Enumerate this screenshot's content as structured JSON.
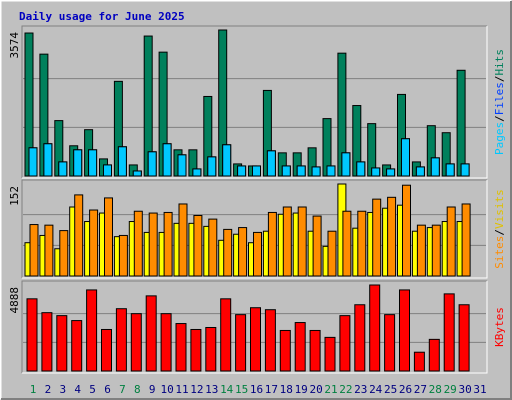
{
  "title": "Daily usage for June 2025",
  "separator": "/",
  "chart_data": [
    {
      "type": "bar",
      "ylim": [
        0,
        3574
      ],
      "yticks": [
        3574
      ],
      "grid_divisions": 3,
      "series": [
        {
          "name": "Hits",
          "color": "#00805c",
          "values": [
            3500,
            2983,
            1356,
            740,
            1134,
            419,
            2317,
            271,
            3426,
            3032,
            641,
            641,
            1947,
            3574,
            296,
            246,
            2095,
            567,
            567,
            690,
            1405,
            3007,
            1725,
            1282,
            271,
            1997,
            345,
            1232,
            1060,
            2588,
            null
          ]
        },
        {
          "name": "Files",
          "color": "#0040ff",
          "values": [
            690,
            789,
            345,
            641,
            641,
            271,
            715,
            123,
            592,
            789,
            518,
            173,
            468,
            764,
            246,
            246,
            616,
            246,
            246,
            222,
            246,
            567,
            345,
            197,
            173,
            912,
            222,
            444,
            296,
            296,
            null
          ]
        },
        {
          "name": "Pages",
          "color": "#00c8ff",
          "values": [
            690,
            789,
            345,
            641,
            641,
            271,
            715,
            123,
            592,
            789,
            518,
            173,
            468,
            764,
            246,
            246,
            616,
            246,
            246,
            222,
            246,
            567,
            345,
            197,
            173,
            912,
            222,
            444,
            296,
            296,
            null
          ]
        }
      ]
    },
    {
      "type": "bar",
      "ylim": [
        0,
        152
      ],
      "yticks": [
        152
      ],
      "grid_divisions": 3,
      "series": [
        {
          "name": "Visits",
          "color": "#ffff00",
          "values": [
            55,
            67,
            45,
            114,
            90,
            104,
            65,
            90,
            72,
            72,
            87,
            87,
            82,
            59,
            69,
            55,
            74,
            102,
            104,
            74,
            49,
            152,
            79,
            105,
            112,
            117,
            74,
            80,
            90,
            90,
            null
          ]
        },
        {
          "name": "Sites",
          "color": "#ff8c00",
          "values": [
            85,
            84,
            75,
            134,
            109,
            129,
            67,
            107,
            104,
            105,
            119,
            100,
            94,
            77,
            80,
            72,
            105,
            114,
            114,
            99,
            74,
            107,
            107,
            127,
            130,
            150,
            84,
            84,
            114,
            119,
            null
          ]
        }
      ]
    },
    {
      "type": "bar",
      "ylim": [
        0,
        4888
      ],
      "yticks": [
        4888
      ],
      "grid_divisions": 3,
      "categories": [
        "1",
        "2",
        "3",
        "4",
        "5",
        "6",
        "7",
        "8",
        "9",
        "10",
        "11",
        "12",
        "13",
        "14",
        "15",
        "16",
        "17",
        "18",
        "19",
        "20",
        "21",
        "22",
        "23",
        "24",
        "25",
        "26",
        "27",
        "28",
        "29",
        "30",
        "31"
      ],
      "category_colors": [
        "#008040",
        "#000080",
        "#000080",
        "#000080",
        "#000080",
        "#000080",
        "#008040",
        "#008040",
        "#000080",
        "#000080",
        "#000080",
        "#000080",
        "#000080",
        "#008040",
        "#008040",
        "#000080",
        "#000080",
        "#000080",
        "#000080",
        "#000080",
        "#008040",
        "#008040",
        "#000080",
        "#000080",
        "#000080",
        "#000080",
        "#000080",
        "#008040",
        "#008040",
        "#000080",
        "#000080"
      ],
      "series": [
        {
          "name": "KBytes",
          "color": "#ff0000",
          "values": [
            4103,
            3316,
            3147,
            2866,
            4608,
            2360,
            3541,
            3259,
            4271,
            3259,
            2697,
            2360,
            2473,
            4103,
            3203,
            3597,
            3484,
            2304,
            2754,
            2304,
            1911,
            3147,
            3766,
            4888,
            3203,
            4608,
            1068,
            1798,
            4384,
            3766,
            null
          ]
        }
      ]
    }
  ]
}
